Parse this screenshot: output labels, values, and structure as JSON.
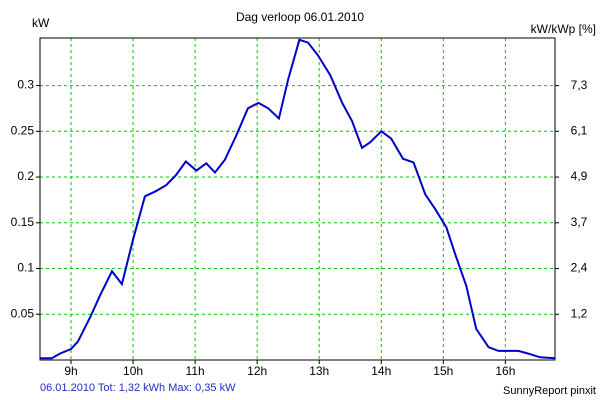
{
  "chart_data": {
    "type": "line",
    "title": "Dag  verloop 06.01.2010",
    "y_label": "kW",
    "y2_label": "kW/kWp [%]",
    "footer_left": "06.01.2010 Tot: 1,32 kWh Max: 0,35 kW",
    "footer_right": "SunnyReport pinxit",
    "color": "#0000cc",
    "grid": true,
    "grid_color": "#00cc00",
    "x": [
      8.5,
      8.69,
      8.82,
      9.0,
      9.11,
      9.31,
      9.47,
      9.66,
      9.82,
      10.0,
      10.19,
      10.35,
      10.53,
      10.69,
      10.85,
      11.02,
      11.18,
      11.32,
      11.48,
      11.66,
      11.85,
      12.02,
      12.18,
      12.35,
      12.5,
      12.68,
      12.82,
      12.98,
      13.18,
      13.37,
      13.53,
      13.69,
      13.82,
      14.0,
      14.16,
      14.35,
      14.52,
      14.71,
      14.87,
      15.05,
      15.19,
      15.37,
      15.53,
      15.73,
      15.89,
      16.21,
      16.37,
      16.56,
      16.8
    ],
    "values": [
      0.002,
      0.002,
      0.007,
      0.012,
      0.02,
      0.047,
      0.071,
      0.097,
      0.083,
      0.132,
      0.179,
      0.184,
      0.191,
      0.202,
      0.217,
      0.207,
      0.215,
      0.205,
      0.219,
      0.245,
      0.275,
      0.281,
      0.275,
      0.264,
      0.307,
      0.35,
      0.347,
      0.333,
      0.311,
      0.281,
      0.261,
      0.232,
      0.238,
      0.25,
      0.242,
      0.22,
      0.216,
      0.181,
      0.165,
      0.145,
      0.116,
      0.081,
      0.034,
      0.014,
      0.01,
      0.01,
      0.007,
      0.003,
      0.002
    ],
    "xlim": [
      8.5,
      16.8
    ],
    "xticks": [
      {
        "value": 9,
        "label": "9h"
      },
      {
        "value": 10,
        "label": "10h"
      },
      {
        "value": 11,
        "label": "11h"
      },
      {
        "value": 12,
        "label": "12h"
      },
      {
        "value": 13,
        "label": "13h"
      },
      {
        "value": 14,
        "label": "14h"
      },
      {
        "value": 15,
        "label": "15h"
      },
      {
        "value": 16,
        "label": "16h"
      }
    ],
    "ylim": [
      0,
      0.352
    ],
    "yticks": [
      0.05,
      0.1,
      0.15,
      0.2,
      0.25,
      0.3
    ],
    "y2lim": [
      0,
      8.59
    ],
    "y2ticks": [
      {
        "value": 1.22,
        "label": "1,2"
      },
      {
        "value": 2.44,
        "label": "2,4"
      },
      {
        "value": 3.66,
        "label": "3,7"
      },
      {
        "value": 4.88,
        "label": "4,9"
      },
      {
        "value": 6.1,
        "label": "6,1"
      },
      {
        "value": 7.32,
        "label": "7,3"
      }
    ]
  }
}
